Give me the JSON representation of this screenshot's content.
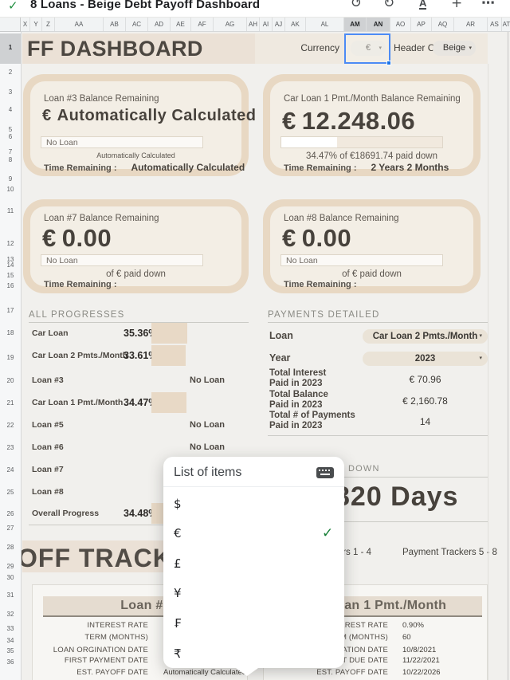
{
  "colors": {
    "accent_blue": "#4c8bf5",
    "beige_band": "#ebe1d6",
    "card_ring": "#e8d8c3",
    "card_fill": "#f3eee5",
    "bar_fill": "#e8d9c6",
    "check_green": "#188038"
  },
  "app_bar": {
    "title": "8 Loans - Beige Debt Payoff Dashboard",
    "saved_check": "✓",
    "icons": {
      "undo": "↺",
      "redo": "↻",
      "format": "A",
      "add": "+",
      "more": "⋯"
    }
  },
  "grid": {
    "columns": [
      "X",
      "Y",
      "Z",
      "AA",
      "AB",
      "AC",
      "AD",
      "AE",
      "AF",
      "AG",
      "AH",
      "AI",
      "AJ",
      "AK",
      "AL",
      "AM",
      "AN",
      "AO",
      "AP",
      "AQ",
      "AR",
      "AS",
      "AT"
    ],
    "selected_columns": [
      "AM",
      "AN"
    ],
    "rows": [
      "1",
      "2",
      "3",
      "4",
      "5",
      "6",
      "7",
      "8",
      "9",
      "10",
      "11",
      "12",
      "13",
      "14",
      "15",
      "16",
      "17",
      "18",
      "19",
      "20",
      "21",
      "22",
      "23",
      "24",
      "25",
      "26",
      "27",
      "28",
      "29",
      "30",
      "31",
      "32",
      "33",
      "34",
      "35",
      "36"
    ],
    "selected_row": "1"
  },
  "header_row": {
    "title": "FF DASHBOARD",
    "currency_label": "Currency",
    "currency_value": "€",
    "currency_caret": "▾",
    "header_color_label": "Header Color",
    "header_color_value": "Beige",
    "header_color_caret": "▾"
  },
  "cards": [
    {
      "title": "Loan #3 Balance Remaining",
      "currency": "€",
      "amount": "Automatically Calculated",
      "bar_text": "No Loan",
      "bar_fill_pct": 0,
      "mid_text": "Automatically Calculated",
      "time_label": "Time Remaining :",
      "time_value": "Automatically Calculated"
    },
    {
      "title": "Car Loan 1 Pmt./Month Balance Remaining",
      "currency": "€",
      "amount": "12.248.06",
      "bar_text": "",
      "bar_fill_pct": 34.47,
      "mid_text": "34.47% of €18691.74 paid down",
      "time_label": "Time Remaining :",
      "time_value": "2 Years 2 Months"
    },
    {
      "title": "Loan #7 Balance Remaining",
      "currency": "€",
      "amount": "0.00",
      "bar_text": "No Loan",
      "bar_fill_pct": 0,
      "mid_text": "of € paid down",
      "time_label": "Time Remaining :",
      "time_value": ""
    },
    {
      "title": "Loan #8 Balance Remaining",
      "currency": "€",
      "amount": "0.00",
      "bar_text": "No Loan",
      "bar_fill_pct": 0,
      "mid_text": "of € paid down",
      "time_label": "Time Remaining :",
      "time_value": ""
    }
  ],
  "progress": {
    "header": "ALL PROGRESSES",
    "rows": [
      {
        "label": "Car Loan",
        "pct": "35.36%",
        "bar": 35.36
      },
      {
        "label": "Car Loan 2 Pmts./Month",
        "pct": "33.61%",
        "bar": 33.61
      },
      {
        "label": "Loan #3",
        "status": "No Loan"
      },
      {
        "label": "Car Loan 1 Pmt./Month",
        "pct": "34.47%",
        "bar": 34.47
      },
      {
        "label": "Loan #5",
        "status": "No Loan"
      },
      {
        "label": "Loan #6",
        "status": "No Loan"
      },
      {
        "label": "Loan #7"
      },
      {
        "label": "Loan #8"
      },
      {
        "label": "Overall Progress",
        "pct": "34.48%",
        "bar": 34.48
      }
    ]
  },
  "payments": {
    "header": "PAYMENTS DETAILED",
    "loan_label": "Loan",
    "loan_value": "Car Loan 2 Pmts./Month",
    "year_label": "Year",
    "year_value": "2023",
    "caret": "▾",
    "rows": [
      {
        "label1": "Total Interest",
        "label2": "Paid in 2023",
        "value": "€ 70.96"
      },
      {
        "label1": "Total Balance",
        "label2": "Paid in 2023",
        "value": "€ 2,160.78"
      },
      {
        "label1": "Total # of Payments",
        "label2": "Paid in 2023",
        "value": "14"
      }
    ]
  },
  "countdown": {
    "header_visible": "DOWN",
    "value": "820 Days"
  },
  "tracker": {
    "title": "OFF TRACKER",
    "link1": "Payment Trackers 1 - 4",
    "link2": "Payment Trackers 5 - 8"
  },
  "loan_tables": {
    "left": {
      "title": "Loan #3",
      "rows": [
        {
          "label": "INTEREST RATE",
          "value": ""
        },
        {
          "label": "TERM (MONTHS)",
          "value": ""
        },
        {
          "label": "LOAN ORGINATION DATE",
          "value": ""
        },
        {
          "label": "FIRST PAYMENT DATE",
          "value": ""
        },
        {
          "label": "EST. PAYOFF DATE",
          "value": "Automatically Calculated"
        }
      ]
    },
    "right": {
      "title": "Car Loan 1 Pmt./Month",
      "rows": [
        {
          "label": "INTEREST RATE",
          "value": "0.90%"
        },
        {
          "label": "TERM (MONTHS)",
          "value": "60"
        },
        {
          "label": "LOAN ORGINATION DATE",
          "value": "10/8/2021"
        },
        {
          "label": "FIRST PAYMENT DUE DATE",
          "value": "11/22/2021"
        },
        {
          "label": "EST. PAYOFF DATE",
          "value": "10/22/2026"
        }
      ]
    }
  },
  "popup": {
    "title": "List of items",
    "check": "✓",
    "items": [
      {
        "symbol": "$",
        "selected": false
      },
      {
        "symbol": "€",
        "selected": true
      },
      {
        "symbol": "£",
        "selected": false
      },
      {
        "symbol": "¥",
        "selected": false
      },
      {
        "symbol": "₣",
        "selected": false
      },
      {
        "symbol": "₹",
        "selected": false
      }
    ]
  }
}
